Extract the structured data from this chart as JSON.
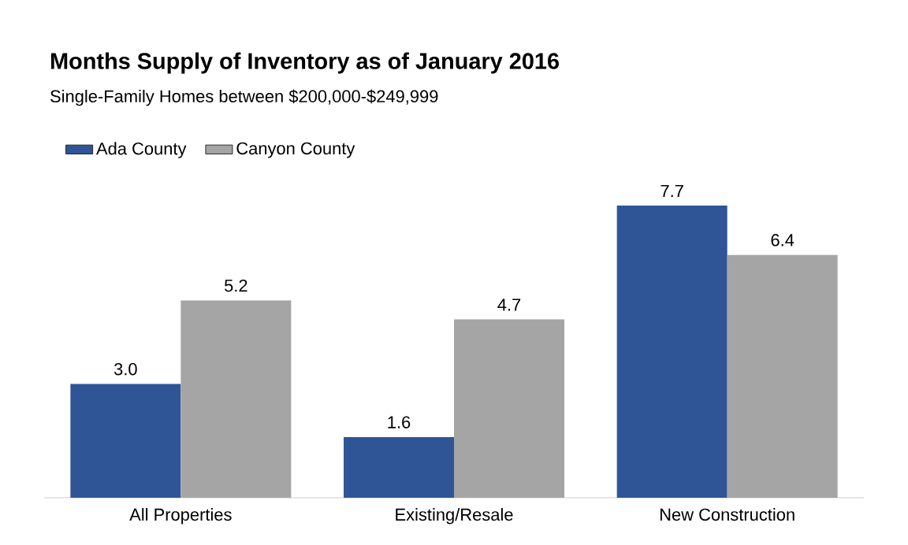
{
  "chart_data": {
    "type": "bar",
    "title": "Months Supply of Inventory as of January 2016",
    "subtitle": "Single-Family Homes between $200,000-$249,999",
    "categories": [
      "All Properties",
      "Existing/Resale",
      "New Construction"
    ],
    "series": [
      {
        "name": "Ada County",
        "color": "#2f5597",
        "values": [
          3.0,
          1.6,
          7.7
        ],
        "value_labels": [
          "3.0",
          "1.6",
          "7.7"
        ]
      },
      {
        "name": "Canyon County",
        "color": "#a5a5a5",
        "values": [
          5.2,
          4.7,
          6.4
        ],
        "value_labels": [
          "5.2",
          "4.7",
          "6.4"
        ]
      }
    ],
    "legend": "top left"
  }
}
